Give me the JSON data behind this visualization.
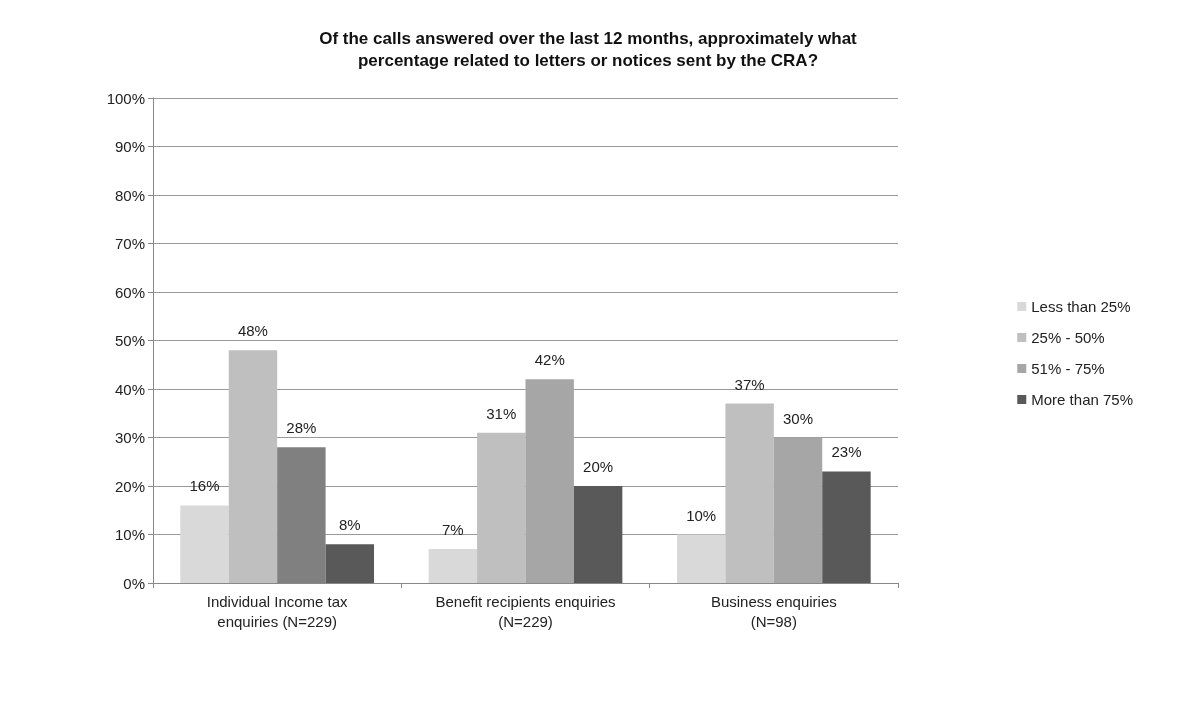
{
  "chart_data": {
    "type": "bar",
    "title": "Of the calls answered over the last 12 months, approximately what\npercentage related to letters or notices sent by the CRA?",
    "categories": [
      "Individual Income tax\nenquiries (N=229)",
      "Benefit recipients enquiries\n(N=229)",
      "Business enquiries\n(N=98)"
    ],
    "series": [
      {
        "name": "Less than 25%",
        "color": "#d9d9d9",
        "values": [
          16,
          7,
          10
        ],
        "value_labels": [
          "16%",
          "7%",
          "10%"
        ]
      },
      {
        "name": "25% - 50%",
        "color": "#bfbfbf",
        "values": [
          48,
          31,
          37
        ],
        "value_labels": [
          "48%",
          "31%",
          "37%"
        ]
      },
      {
        "name": "51% - 75%",
        "color": "#a6a6a6",
        "colors": [
          "#808080",
          "#a6a6a6",
          "#a6a6a6"
        ],
        "values": [
          28,
          42,
          30
        ],
        "value_labels": [
          "28%",
          "42%",
          "30%"
        ]
      },
      {
        "name": "More than 75%",
        "color": "#595959",
        "values": [
          8,
          20,
          23
        ],
        "value_labels": [
          "8%",
          "20%",
          "23%"
        ]
      }
    ],
    "ylim": [
      0,
      100
    ],
    "yticks": [
      {
        "value": 0,
        "label": "0%"
      },
      {
        "value": 10,
        "label": "10%"
      },
      {
        "value": 20,
        "label": "20%"
      },
      {
        "value": 30,
        "label": "30%"
      },
      {
        "value": 40,
        "label": "40%"
      },
      {
        "value": 50,
        "label": "50%"
      },
      {
        "value": 60,
        "label": "60%"
      },
      {
        "value": 70,
        "label": "70%"
      },
      {
        "value": 80,
        "label": "80%"
      },
      {
        "value": 90,
        "label": "90%"
      },
      {
        "value": 100,
        "label": "100%"
      }
    ],
    "grid": "y",
    "legend": "right"
  }
}
